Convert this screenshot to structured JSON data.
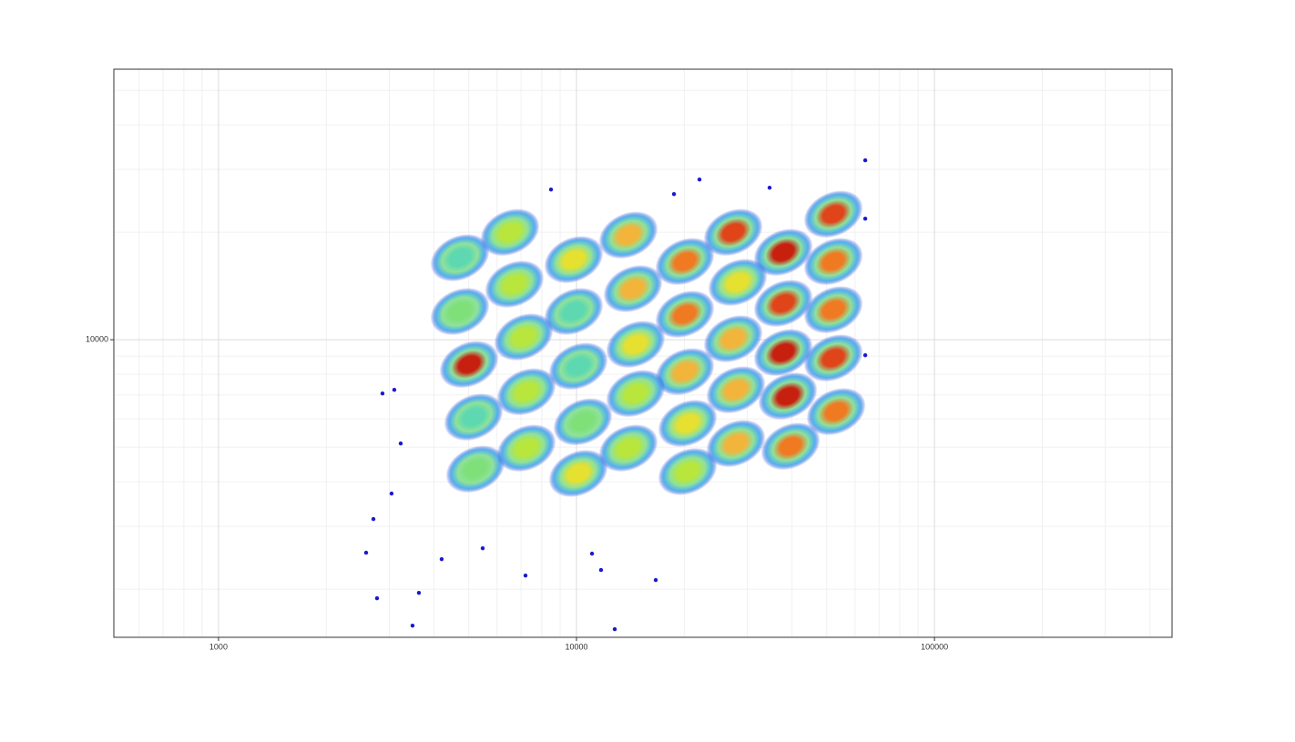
{
  "chart_data": {
    "type": "scatter",
    "xlim": [
      510,
      461000
    ],
    "ylim": [
      1466,
      57300
    ],
    "xticks": [
      1000,
      10000,
      100000
    ],
    "yticks": [
      10000
    ],
    "log_x": true,
    "log_y": true,
    "grid": true,
    "clusters": {
      "x": [
        4725,
        6520,
        9825,
        13960,
        20080,
        27400,
        37810,
        52190,
        52190,
        4725,
        6710,
        9825,
        14380,
        20080,
        28210,
        37810,
        52190,
        5010,
        7120,
        10120,
        14630,
        20080,
        27400,
        37810,
        52190,
        5160,
        7245,
        10420,
        14630,
        20440,
        27880,
        38940,
        53120,
        5220,
        7245,
        10120,
        13960,
        20440,
        27880,
        39630
      ],
      "y": [
        16970,
        20000,
        16770,
        19650,
        16570,
        20000,
        17580,
        22490,
        16570,
        12000,
        14310,
        12000,
        13900,
        11790,
        14480,
        12650,
        12140,
        8530,
        10180,
        8430,
        9710,
        8140,
        10060,
        9210,
        8890,
        6070,
        7150,
        5890,
        7070,
        5830,
        7240,
        6950,
        6290,
        4340,
        4970,
        4220,
        4970,
        4270,
        5120,
        5030
      ],
      "colors": [
        "#5ed8b0",
        "#b9e63c",
        "#e6e030",
        "#f2b43a",
        "#f07a22",
        "#e0451a",
        "#c8200f",
        "#e0451a",
        "#f07a22",
        "#7fe07a",
        "#b9e63c",
        "#5ed8b0",
        "#f2b43a",
        "#f07a22",
        "#e6e030",
        "#e0451a",
        "#f07a22",
        "#c8200f",
        "#b9e63c",
        "#5ed8b0",
        "#e6e030",
        "#f2b43a",
        "#f2b43a",
        "#c8200f",
        "#e0451a",
        "#5ed8b0",
        "#b9e63c",
        "#7fe07a",
        "#b9e63c",
        "#e6e030",
        "#f2b43a",
        "#c8200f",
        "#f07a22",
        "#7fe07a",
        "#b9e63c",
        "#e6e030",
        "#b9e63c",
        "#b9e63c",
        "#f2b43a",
        "#f07a22"
      ]
    },
    "outliers": {
      "x": [
        2584,
        2772,
        3483,
        3629,
        2708,
        3044,
        3228,
        2871,
        3098,
        11050,
        12790,
        16650,
        11710,
        7203,
        5470,
        4201,
        64070,
        22060,
        18720,
        34630,
        8488,
        64070,
        64070
      ],
      "y": [
        2530,
        1886,
        1581,
        1953,
        3144,
        3706,
        5120,
        7070,
        7240,
        2515,
        1545,
        2121,
        2263,
        2184,
        2604,
        2427,
        31830,
        28120,
        25600,
        26670,
        26360,
        21840,
        9050
      ],
      "color": "#1a1acc"
    }
  }
}
